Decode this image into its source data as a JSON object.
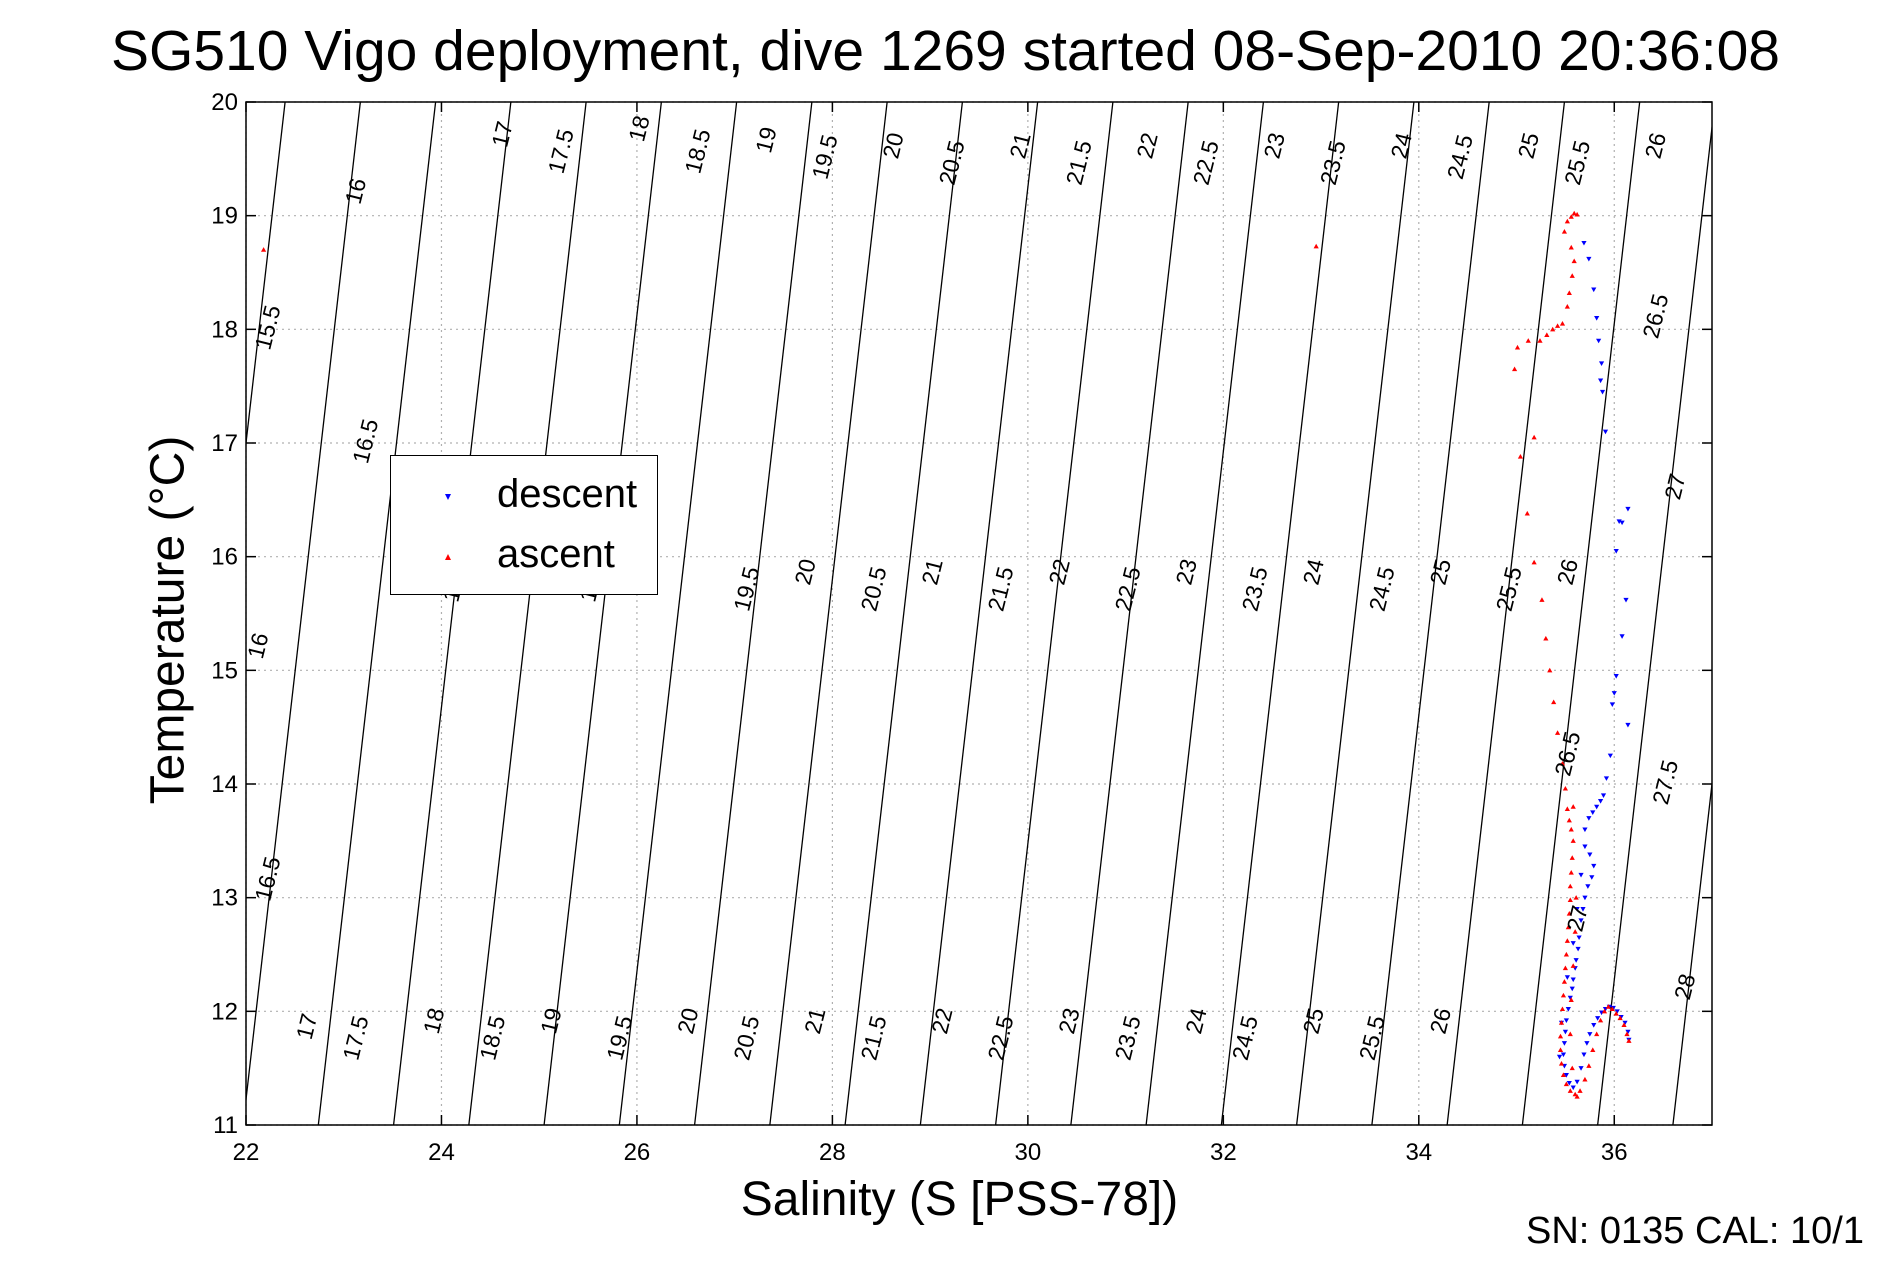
{
  "title": "SG510 Vigo deployment, dive 1269 started 08-Sep-2010 20:36:08",
  "footer": "SN: 0135  CAL: 10/1",
  "colors": {
    "descent": "#0000ff",
    "ascent": "#ff0000",
    "contour": "#000000",
    "grid": "#b0b0b0"
  },
  "chart_data": {
    "type": "scatter",
    "title": "SG510 Vigo deployment, dive 1269 started 08-Sep-2010 20:36:08",
    "xlabel": "Salinity (S [PSS-78])",
    "ylabel": "Temperature (°C)",
    "xlim": [
      22,
      37
    ],
    "ylim": [
      11,
      20
    ],
    "x_ticks": [
      22,
      24,
      26,
      28,
      30,
      32,
      34,
      36
    ],
    "y_ticks": [
      11,
      12,
      13,
      14,
      15,
      16,
      17,
      18,
      19,
      20
    ],
    "grid": true,
    "legend": {
      "placement": "upper-left",
      "entries": [
        "descent",
        "ascent"
      ]
    },
    "density_contour_labels": [
      {
        "value": "15.5",
        "s": 22.3,
        "t": 18.0
      },
      {
        "value": "16",
        "s": 23.2,
        "t": 19.2
      },
      {
        "value": "16.5",
        "s": 23.3,
        "t": 17.0
      },
      {
        "value": "17",
        "s": 24.7,
        "t": 19.7
      },
      {
        "value": "17.5",
        "s": 25.3,
        "t": 19.55
      },
      {
        "value": "18",
        "s": 26.1,
        "t": 19.75
      },
      {
        "value": "18.5",
        "s": 26.7,
        "t": 19.55
      },
      {
        "value": "19",
        "s": 27.4,
        "t": 19.65
      },
      {
        "value": "19.5",
        "s": 28.0,
        "t": 19.5
      },
      {
        "value": "20",
        "s": 28.7,
        "t": 19.6
      },
      {
        "value": "20.5",
        "s": 29.3,
        "t": 19.45
      },
      {
        "value": "21",
        "s": 30.0,
        "t": 19.6
      },
      {
        "value": "21.5",
        "s": 30.6,
        "t": 19.45
      },
      {
        "value": "22",
        "s": 31.3,
        "t": 19.6
      },
      {
        "value": "22.5",
        "s": 31.9,
        "t": 19.45
      },
      {
        "value": "23",
        "s": 32.6,
        "t": 19.6
      },
      {
        "value": "23.5",
        "s": 33.2,
        "t": 19.45
      },
      {
        "value": "24",
        "s": 33.9,
        "t": 19.6
      },
      {
        "value": "24.5",
        "s": 34.5,
        "t": 19.5
      },
      {
        "value": "25",
        "s": 35.2,
        "t": 19.6
      },
      {
        "value": "25.5",
        "s": 35.7,
        "t": 19.45
      },
      {
        "value": "26",
        "s": 36.5,
        "t": 19.6
      },
      {
        "value": "26.5",
        "s": 36.5,
        "t": 18.1
      },
      {
        "value": "27",
        "s": 36.7,
        "t": 16.6
      },
      {
        "value": "27.5",
        "s": 36.6,
        "t": 14.0
      },
      {
        "value": "28",
        "s": 36.8,
        "t": 12.2
      },
      {
        "value": "16",
        "s": 22.2,
        "t": 15.2
      },
      {
        "value": "16.5",
        "s": 22.3,
        "t": 13.15
      },
      {
        "value": "17",
        "s": 22.7,
        "t": 11.85
      },
      {
        "value": "17.5",
        "s": 23.2,
        "t": 11.75
      },
      {
        "value": "18",
        "s": 24.0,
        "t": 11.9
      },
      {
        "value": "18.5",
        "s": 24.6,
        "t": 11.75
      },
      {
        "value": "19",
        "s": 25.2,
        "t": 11.9
      },
      {
        "value": "19.5",
        "s": 25.9,
        "t": 11.75
      },
      {
        "value": "20",
        "s": 26.6,
        "t": 11.9
      },
      {
        "value": "20.5",
        "s": 27.2,
        "t": 11.75
      },
      {
        "value": "21",
        "s": 27.9,
        "t": 11.9
      },
      {
        "value": "21.5",
        "s": 28.5,
        "t": 11.75
      },
      {
        "value": "22",
        "s": 29.2,
        "t": 11.9
      },
      {
        "value": "22.5",
        "s": 29.8,
        "t": 11.75
      },
      {
        "value": "23",
        "s": 30.5,
        "t": 11.9
      },
      {
        "value": "23.5",
        "s": 31.1,
        "t": 11.75
      },
      {
        "value": "24",
        "s": 31.8,
        "t": 11.9
      },
      {
        "value": "24.5",
        "s": 32.3,
        "t": 11.75
      },
      {
        "value": "25",
        "s": 33.0,
        "t": 11.9
      },
      {
        "value": "25.5",
        "s": 33.6,
        "t": 11.75
      },
      {
        "value": "26",
        "s": 34.3,
        "t": 11.9
      },
      {
        "value": "17",
        "s": 24.2,
        "t": 15.7
      },
      {
        "value": "18",
        "s": 25.6,
        "t": 15.7
      },
      {
        "value": "19.5",
        "s": 27.2,
        "t": 15.7
      },
      {
        "value": "20",
        "s": 27.8,
        "t": 15.85
      },
      {
        "value": "20.5",
        "s": 28.5,
        "t": 15.7
      },
      {
        "value": "21",
        "s": 29.1,
        "t": 15.85
      },
      {
        "value": "21.5",
        "s": 29.8,
        "t": 15.7
      },
      {
        "value": "22",
        "s": 30.4,
        "t": 15.85
      },
      {
        "value": "22.5",
        "s": 31.1,
        "t": 15.7
      },
      {
        "value": "23",
        "s": 31.7,
        "t": 15.85
      },
      {
        "value": "23.5",
        "s": 32.4,
        "t": 15.7
      },
      {
        "value": "24",
        "s": 33.0,
        "t": 15.85
      },
      {
        "value": "24.5",
        "s": 33.7,
        "t": 15.7
      },
      {
        "value": "25",
        "s": 34.3,
        "t": 15.85
      },
      {
        "value": "25.5",
        "s": 35.0,
        "t": 15.7
      },
      {
        "value": "26",
        "s": 35.6,
        "t": 15.85
      },
      {
        "value": "26.5",
        "s": 35.6,
        "t": 14.25
      },
      {
        "value": "27",
        "s": 35.7,
        "t": 12.8
      }
    ],
    "series": [
      {
        "name": "descent",
        "color": "#0000ff",
        "marker": "triangle-down",
        "points": [
          [
            35.69,
            18.76
          ],
          [
            35.74,
            18.62
          ],
          [
            35.79,
            18.35
          ],
          [
            35.82,
            18.1
          ],
          [
            35.84,
            17.9
          ],
          [
            35.87,
            17.7
          ],
          [
            35.86,
            17.55
          ],
          [
            35.88,
            17.45
          ],
          [
            35.91,
            17.1
          ],
          [
            36.05,
            16.31
          ],
          [
            36.08,
            16.3
          ],
          [
            36.14,
            16.42
          ],
          [
            36.02,
            16.05
          ],
          [
            36.12,
            15.62
          ],
          [
            36.08,
            15.3
          ],
          [
            36.02,
            14.95
          ],
          [
            36.0,
            14.8
          ],
          [
            35.98,
            14.7
          ],
          [
            36.14,
            14.52
          ],
          [
            35.96,
            14.25
          ],
          [
            35.92,
            14.05
          ],
          [
            35.89,
            13.9
          ],
          [
            35.86,
            13.85
          ],
          [
            35.82,
            13.8
          ],
          [
            35.78,
            13.75
          ],
          [
            35.74,
            13.7
          ],
          [
            35.7,
            13.6
          ],
          [
            35.7,
            13.45
          ],
          [
            35.75,
            13.38
          ],
          [
            35.79,
            13.28
          ],
          [
            35.77,
            13.18
          ],
          [
            35.73,
            13.1
          ],
          [
            35.7,
            13.0
          ],
          [
            35.68,
            12.9
          ],
          [
            35.66,
            12.8
          ],
          [
            35.64,
            12.65
          ],
          [
            35.63,
            12.55
          ],
          [
            35.61,
            12.45
          ],
          [
            35.6,
            12.38
          ],
          [
            35.58,
            12.28
          ],
          [
            35.57,
            12.2
          ],
          [
            35.55,
            12.12
          ],
          [
            35.53,
            12.02
          ],
          [
            35.51,
            11.92
          ],
          [
            35.5,
            11.82
          ],
          [
            35.49,
            11.72
          ],
          [
            35.48,
            11.62
          ],
          [
            35.49,
            11.52
          ],
          [
            35.51,
            11.44
          ],
          [
            35.54,
            11.37
          ],
          [
            35.58,
            11.33
          ],
          [
            35.62,
            11.38
          ],
          [
            35.66,
            11.5
          ],
          [
            35.69,
            11.62
          ],
          [
            35.72,
            11.72
          ],
          [
            35.75,
            11.8
          ],
          [
            35.79,
            11.88
          ],
          [
            35.83,
            11.94
          ],
          [
            35.87,
            11.99
          ],
          [
            35.91,
            12.02
          ],
          [
            35.95,
            12.04
          ],
          [
            35.99,
            12.03
          ],
          [
            36.03,
            12.0
          ],
          [
            36.07,
            11.95
          ],
          [
            36.11,
            11.9
          ],
          [
            36.14,
            11.82
          ],
          [
            36.15,
            11.75
          ],
          [
            35.44,
            11.6
          ],
          [
            35.46,
            11.9
          ],
          [
            35.52,
            12.3
          ],
          [
            35.58,
            12.6
          ],
          [
            35.62,
            12.9
          ],
          [
            35.66,
            13.2
          ]
        ]
      },
      {
        "name": "ascent",
        "color": "#ff0000",
        "marker": "triangle-up",
        "points": [
          [
            22.18,
            18.7
          ],
          [
            32.95,
            18.73
          ],
          [
            35.49,
            18.86
          ],
          [
            35.52,
            18.95
          ],
          [
            35.56,
            18.99
          ],
          [
            35.59,
            19.02
          ],
          [
            35.62,
            19.01
          ],
          [
            35.56,
            18.72
          ],
          [
            35.59,
            18.6
          ],
          [
            35.57,
            18.47
          ],
          [
            35.54,
            18.32
          ],
          [
            35.52,
            18.2
          ],
          [
            35.47,
            18.05
          ],
          [
            35.42,
            18.03
          ],
          [
            35.37,
            18.0
          ],
          [
            35.31,
            17.95
          ],
          [
            35.24,
            17.9
          ],
          [
            35.12,
            17.9
          ],
          [
            34.98,
            17.65
          ],
          [
            35.01,
            17.84
          ],
          [
            35.18,
            17.05
          ],
          [
            35.04,
            16.88
          ],
          [
            35.11,
            16.38
          ],
          [
            35.18,
            15.95
          ],
          [
            35.26,
            15.62
          ],
          [
            35.3,
            15.28
          ],
          [
            35.34,
            15.0
          ],
          [
            35.38,
            14.72
          ],
          [
            35.42,
            14.45
          ],
          [
            35.47,
            14.18
          ],
          [
            35.5,
            13.96
          ],
          [
            35.52,
            13.78
          ],
          [
            35.54,
            13.68
          ],
          [
            35.56,
            13.6
          ],
          [
            35.58,
            13.8
          ],
          [
            35.58,
            13.5
          ],
          [
            35.57,
            13.35
          ],
          [
            35.56,
            13.22
          ],
          [
            35.55,
            13.1
          ],
          [
            35.55,
            12.98
          ],
          [
            35.54,
            12.86
          ],
          [
            35.53,
            12.74
          ],
          [
            35.52,
            12.62
          ],
          [
            35.51,
            12.5
          ],
          [
            35.5,
            12.38
          ],
          [
            35.49,
            12.26
          ],
          [
            35.48,
            12.14
          ],
          [
            35.47,
            12.02
          ],
          [
            35.46,
            11.9
          ],
          [
            35.45,
            11.78
          ],
          [
            35.45,
            11.66
          ],
          [
            35.46,
            11.54
          ],
          [
            35.48,
            11.44
          ],
          [
            35.51,
            11.36
          ],
          [
            35.55,
            11.3
          ],
          [
            35.6,
            11.27
          ],
          [
            35.65,
            11.3
          ],
          [
            35.7,
            11.4
          ],
          [
            35.74,
            11.52
          ],
          [
            35.78,
            11.66
          ],
          [
            35.82,
            11.8
          ],
          [
            35.86,
            11.92
          ],
          [
            35.9,
            12.0
          ],
          [
            35.94,
            12.04
          ],
          [
            35.98,
            12.02
          ],
          [
            36.02,
            11.98
          ],
          [
            36.06,
            11.94
          ],
          [
            36.1,
            11.88
          ],
          [
            36.13,
            11.8
          ],
          [
            36.15,
            11.74
          ],
          [
            35.61,
            13.0
          ],
          [
            35.6,
            12.7
          ],
          [
            35.58,
            12.4
          ],
          [
            35.56,
            12.1
          ],
          [
            35.55,
            11.8
          ],
          [
            35.57,
            11.5
          ],
          [
            35.62,
            11.25
          ]
        ]
      }
    ]
  }
}
